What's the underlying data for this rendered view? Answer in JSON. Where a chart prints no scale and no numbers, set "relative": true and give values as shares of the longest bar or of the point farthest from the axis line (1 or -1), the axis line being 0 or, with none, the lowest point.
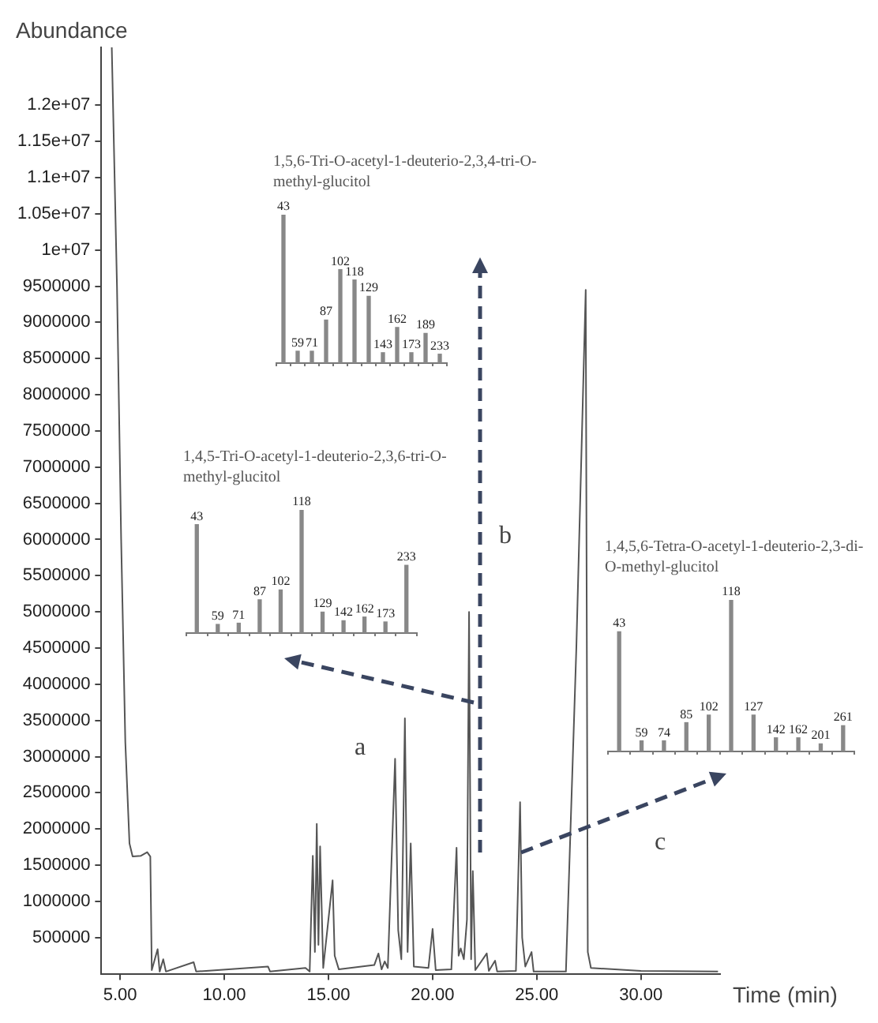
{
  "chart_data": [
    {
      "type": "line",
      "ylabel": "Abundance",
      "xlabel": "Time (min)",
      "x": [
        4.6,
        4.85,
        5.05,
        5.25,
        5.45,
        5.6,
        6.0,
        6.3,
        6.45,
        6.52,
        6.8,
        6.9,
        7.07,
        7.2,
        8.53,
        8.65,
        12.1,
        12.2,
        13.9,
        14.1,
        14.25,
        14.35,
        14.44,
        14.52,
        14.6,
        14.75,
        15.2,
        15.3,
        15.5,
        17.2,
        17.4,
        17.55,
        17.7,
        17.85,
        18.2,
        18.35,
        18.5,
        18.67,
        18.8,
        18.95,
        19.1,
        19.8,
        20.0,
        20.15,
        20.9,
        21.15,
        21.25,
        21.35,
        21.5,
        21.65,
        21.75,
        21.85,
        21.93,
        22.05,
        22.6,
        22.7,
        23.0,
        23.1,
        24.0,
        24.2,
        24.3,
        24.45,
        24.75,
        24.85,
        26.4,
        26.9,
        27.35,
        27.45,
        27.6,
        30.0,
        33.7
      ],
      "series": [
        {
          "color": "#555555",
          "values": [
            12800000,
            9500000,
            6000000,
            3200000,
            1800000,
            1620000,
            1630000,
            1680000,
            1620000,
            50000,
            340000,
            30000,
            200000,
            30000,
            160000,
            30000,
            100000,
            30000,
            80000,
            30000,
            1630000,
            300000,
            2070000,
            400000,
            1760000,
            80000,
            1290000,
            250000,
            60000,
            120000,
            280000,
            60000,
            170000,
            80000,
            2970000,
            600000,
            200000,
            3530000,
            300000,
            1800000,
            100000,
            80000,
            620000,
            50000,
            60000,
            1740000,
            250000,
            350000,
            200000,
            750000,
            5000000,
            200000,
            1420000,
            50000,
            280000,
            40000,
            180000,
            30000,
            40000,
            2370000,
            500000,
            100000,
            300000,
            30000,
            30000,
            4500000,
            9450000,
            300000,
            80000,
            40000,
            30000
          ]
        }
      ],
      "xlim": [
        4.1,
        33.8
      ],
      "ylim": [
        0,
        12800000
      ],
      "xticks": [
        {
          "value": 5,
          "label": "5.00"
        },
        {
          "value": 10,
          "label": "10.00"
        },
        {
          "value": 15,
          "label": "15.00"
        },
        {
          "value": 20,
          "label": "20.00"
        },
        {
          "value": 25,
          "label": "25.00"
        },
        {
          "value": 30,
          "label": "30.00"
        }
      ],
      "yticks": [
        500000,
        1000000,
        1500000,
        2000000,
        2500000,
        3000000,
        3500000,
        4000000,
        4500000,
        5000000,
        5500000,
        6000000,
        6500000,
        7000000,
        7500000,
        8000000,
        8500000,
        9000000,
        9500000,
        {
          "value": 10000000,
          "label": "1e+07"
        },
        {
          "value": 10500000,
          "label": "1.05e+07"
        },
        {
          "value": 11000000,
          "label": "1.1e+07"
        },
        {
          "value": 11500000,
          "label": "1.15e+07"
        },
        {
          "value": 12000000,
          "label": "1.2e+07"
        }
      ],
      "annotations": [
        "a",
        "b",
        "c"
      ],
      "grid": false,
      "legend": false
    },
    {
      "type": "bar",
      "title": "1,5,6-Tri-O-acetyl-1-deuterio-2,3,4-tri-O-methyl-glucitol",
      "relative": true,
      "color": "#888888",
      "categories": [
        "43",
        "59",
        "71",
        "87",
        "102",
        "118",
        "129",
        "143",
        "162",
        "173",
        "189",
        "233"
      ],
      "values": [
        1,
        0.08,
        0.08,
        0.29,
        0.63,
        0.56,
        0.45,
        0.07,
        0.24,
        0.07,
        0.2,
        0.06
      ]
    },
    {
      "type": "bar",
      "title": "1,4,5-Tri-O-acetyl-1-deuterio-2,3,6-tri-O-methyl-glucitol",
      "relative": true,
      "color": "#888888",
      "categories": [
        "43",
        "59",
        "71",
        "87",
        "102",
        "118",
        "129",
        "142",
        "162",
        "173",
        "233"
      ],
      "values": [
        0.88,
        0.07,
        0.08,
        0.27,
        0.35,
        1,
        0.17,
        0.1,
        0.13,
        0.09,
        0.55
      ]
    },
    {
      "type": "bar",
      "title": "1,4,5,6-Tetra-O-acetyl-1-deuterio-2,3-di-O-methyl-glucitol",
      "relative": true,
      "color": "#888888",
      "categories": [
        "43",
        "59",
        "74",
        "85",
        "102",
        "118",
        "127",
        "142",
        "162",
        "201",
        "261"
      ],
      "values": [
        0.79,
        0.07,
        0.07,
        0.19,
        0.24,
        1,
        0.24,
        0.09,
        0.09,
        0.05,
        0.17
      ]
    }
  ]
}
